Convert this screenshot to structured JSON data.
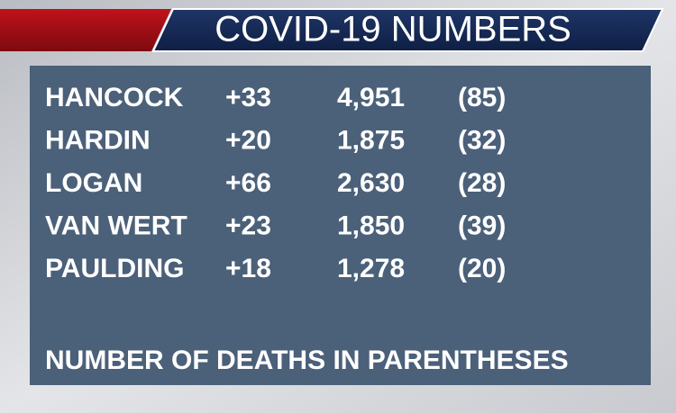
{
  "header": {
    "title": "COVID-19 NUMBERS"
  },
  "table": {
    "rows": [
      [
        "HANCOCK",
        "+33",
        "4,951",
        "(85)"
      ],
      [
        "HARDIN",
        "+20",
        "1,875",
        "(32)"
      ],
      [
        "LOGAN",
        "+66",
        "2,630",
        "(28)"
      ],
      [
        "VAN WERT",
        "+23",
        "1,850",
        "(39)"
      ],
      [
        "PAULDING",
        "+18",
        "1,278",
        "(20)"
      ]
    ]
  },
  "footer": {
    "note": "NUMBER OF DEATHS IN PARENTHESES"
  }
}
